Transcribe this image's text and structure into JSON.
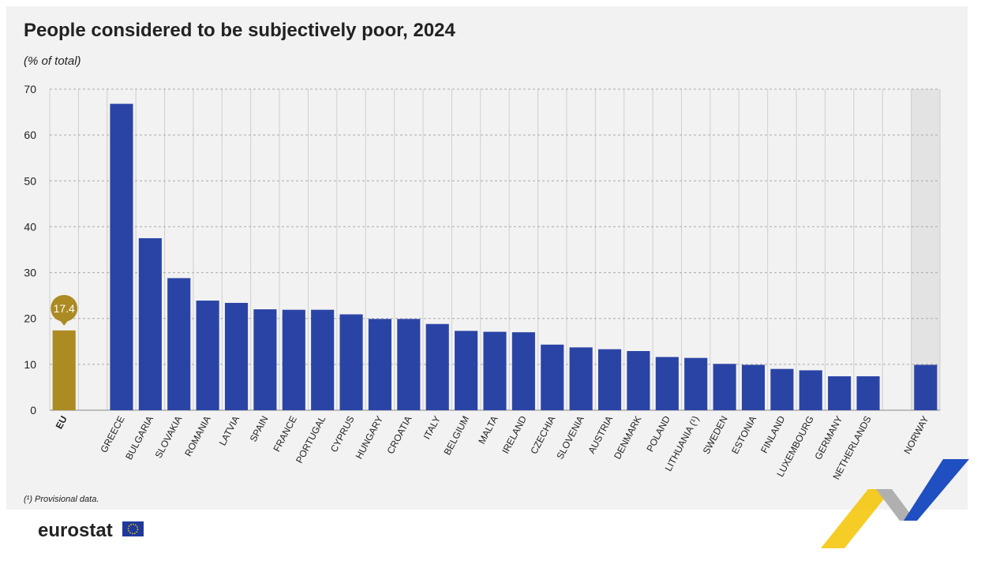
{
  "chart_data": {
    "type": "bar",
    "title": "People considered to be subjectively poor, 2024",
    "subtitle": "(% of total)",
    "categories": [
      "EU",
      null,
      "GREECE",
      "BULGARIA",
      "SLOVAKIA",
      "ROMANIA",
      "LATVIA",
      "SPAIN",
      "FRANCE",
      "PORTUGAL",
      "CYPRUS",
      "HUNGARY",
      "CROATIA",
      "ITALY",
      "BELGIUM",
      "MALTA",
      "IRELAND",
      "CZECHIA",
      "SLOVENIA",
      "AUSTRIA",
      "DENMARK",
      "POLAND",
      "LITHUANIA (¹)",
      "SWEDEN",
      "ESTONIA",
      "FINLAND",
      "LUXEMBOURG",
      "GERMANY",
      "NETHERLANDS",
      null,
      "NORWAY"
    ],
    "values": [
      17.4,
      null,
      66.8,
      37.5,
      28.8,
      23.9,
      23.4,
      22.0,
      21.9,
      21.9,
      20.9,
      19.9,
      19.9,
      18.8,
      17.3,
      17.1,
      17.0,
      14.3,
      13.7,
      13.3,
      12.9,
      11.6,
      11.4,
      10.1,
      9.9,
      9.0,
      8.7,
      7.4,
      7.4,
      null,
      9.9
    ],
    "value_labels": [
      "17.4",
      null,
      null,
      null,
      null,
      null,
      null,
      null,
      null,
      null,
      null,
      null,
      null,
      null,
      null,
      null,
      null,
      null,
      null,
      null,
      null,
      null,
      null,
      null,
      null,
      null,
      null,
      null,
      null,
      null,
      null
    ],
    "colors": [
      "#ab8b22",
      null,
      "#2a44a6",
      "#2a44a6",
      "#2a44a6",
      "#2a44a6",
      "#2a44a6",
      "#2a44a6",
      "#2a44a6",
      "#2a44a6",
      "#2a44a6",
      "#2a44a6",
      "#2a44a6",
      "#2a44a6",
      "#2a44a6",
      "#2a44a6",
      "#2a44a6",
      "#2a44a6",
      "#2a44a6",
      "#2a44a6",
      "#2a44a6",
      "#2a44a6",
      "#2a44a6",
      "#2a44a6",
      "#2a44a6",
      "#2a44a6",
      "#2a44a6",
      "#2a44a6",
      "#2a44a6",
      null,
      "#2a44a6"
    ],
    "ylim": [
      0,
      70
    ],
    "yticks": [
      0,
      10,
      20,
      30,
      40,
      50,
      60,
      70
    ],
    "grid": true,
    "footnote": "(¹) Provisional data.",
    "source_logo": "eurostat"
  }
}
